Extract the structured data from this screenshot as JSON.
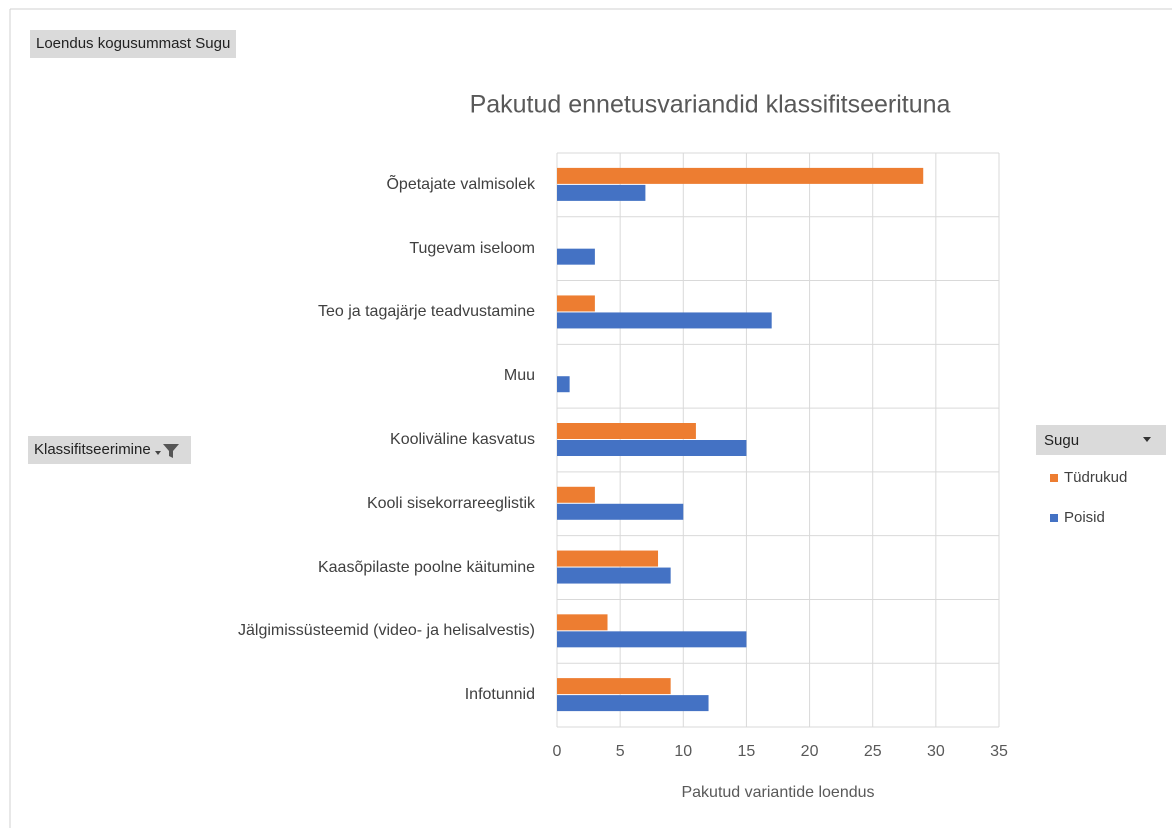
{
  "chart_data": {
    "type": "bar",
    "orientation": "horizontal",
    "title": "Pakutud ennetusvariandid klassifitseerituna",
    "x_label": "Pakutud variantide loendus",
    "pivot_value_field": "Loendus kogusummast Sugu",
    "pivot_row_field": "Klassifitseerimine",
    "legend_title": "Sugu",
    "categories": [
      "Õpetajate valmisolek",
      "Tugevam iseloom",
      "Teo ja tagajärje teadvustamine",
      "Muu",
      "Kooliväline kasvatus",
      "Kooli sisekorrareeglistik",
      "Kaasõpilaste poolne käitumine",
      "Jälgimissüsteemid (video- ja helisalvestis)",
      "Infotunnid"
    ],
    "series": [
      {
        "name": "Tüdrukud",
        "color": "#ed7d31",
        "values": [
          29,
          null,
          3,
          null,
          11,
          3,
          8,
          4,
          9
        ]
      },
      {
        "name": "Poisid",
        "color": "#4472c4",
        "values": [
          7,
          3,
          17,
          1,
          15,
          10,
          9,
          15,
          12
        ]
      }
    ],
    "xlim": [
      0,
      35
    ],
    "xticks": [
      0,
      5,
      10,
      15,
      20,
      25,
      30,
      35
    ],
    "grid": true,
    "legend": "right"
  }
}
